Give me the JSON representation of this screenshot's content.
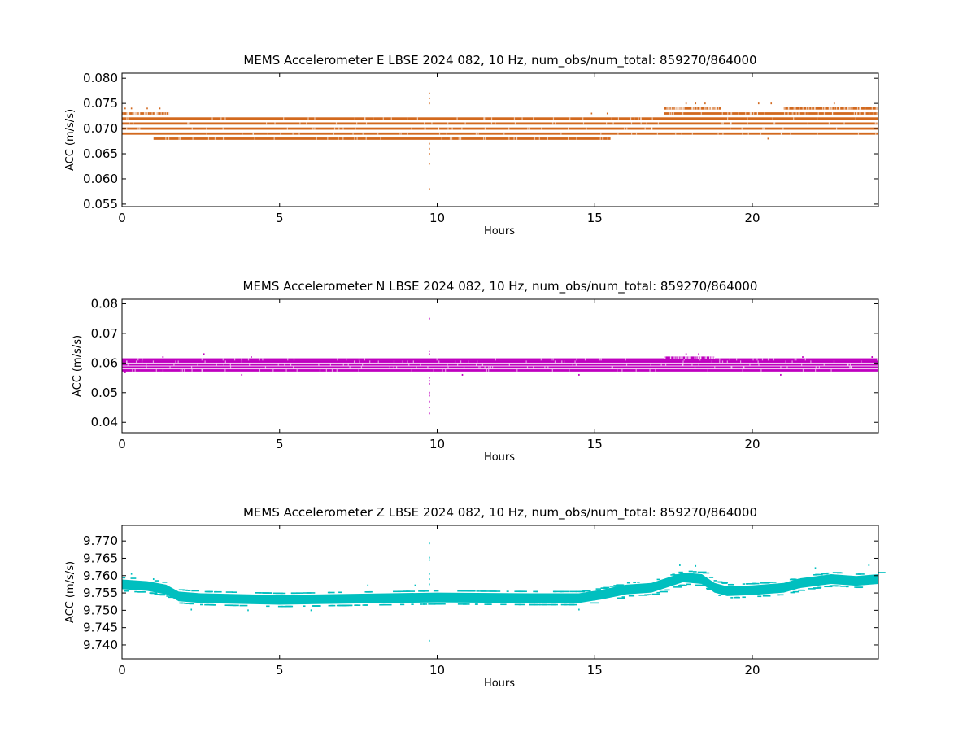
{
  "chart_data": [
    {
      "type": "scatter",
      "title": "MEMS Accelerometer E LBSE 2024 082, 10 Hz, num_obs/num_total: 859270/864000",
      "xlabel": "Hours",
      "ylabel": "ACC (m/s/s)",
      "xlim": [
        0,
        24
      ],
      "ylim": [
        0.0545,
        0.081
      ],
      "x_ticks": [
        "0",
        "5",
        "10",
        "15",
        "20"
      ],
      "x_tick_values": [
        0,
        5,
        10,
        15,
        20
      ],
      "y_ticks": [
        "0.055",
        "0.060",
        "0.065",
        "0.070",
        "0.075",
        "0.080"
      ],
      "y_tick_values": [
        0.055,
        0.06,
        0.065,
        0.07,
        0.075,
        0.08
      ],
      "color": "#d2691e",
      "grid": false,
      "series": [
        {
          "bands": [
            {
              "y": 0.069,
              "x": [
                0,
                24
              ]
            },
            {
              "y": 0.07,
              "x": [
                0,
                24
              ]
            },
            {
              "y": 0.071,
              "x": [
                0,
                24
              ]
            },
            {
              "y": 0.072,
              "x": [
                0,
                24
              ]
            },
            {
              "y": 0.073,
              "x": [
                0,
                1.5
              ]
            },
            {
              "y": 0.073,
              "x": [
                17.2,
                24
              ]
            },
            {
              "y": 0.074,
              "x": [
                17.2,
                19
              ]
            },
            {
              "y": 0.074,
              "x": [
                21,
                24
              ]
            },
            {
              "y": 0.068,
              "x": [
                1.0,
                15.5
              ]
            }
          ],
          "outliers": [
            {
              "x": 0.1,
              "y": 0.074
            },
            {
              "x": 0.3,
              "y": 0.074
            },
            {
              "x": 0.8,
              "y": 0.074
            },
            {
              "x": 1.2,
              "y": 0.074
            },
            {
              "x": 14.9,
              "y": 0.073
            },
            {
              "x": 15.4,
              "y": 0.073
            },
            {
              "x": 17.9,
              "y": 0.075
            },
            {
              "x": 18.2,
              "y": 0.075
            },
            {
              "x": 18.5,
              "y": 0.075
            },
            {
              "x": 20.2,
              "y": 0.075
            },
            {
              "x": 20.6,
              "y": 0.075
            },
            {
              "x": 22.6,
              "y": 0.075
            },
            {
              "x": 20.5,
              "y": 0.068
            },
            {
              "x": 9.75,
              "y": 0.077
            },
            {
              "x": 9.75,
              "y": 0.076
            },
            {
              "x": 9.75,
              "y": 0.075
            },
            {
              "x": 9.75,
              "y": 0.067
            },
            {
              "x": 9.75,
              "y": 0.066
            },
            {
              "x": 9.75,
              "y": 0.065
            },
            {
              "x": 9.75,
              "y": 0.063
            },
            {
              "x": 9.75,
              "y": 0.058
            }
          ]
        }
      ]
    },
    {
      "type": "scatter",
      "title": "MEMS Accelerometer N LBSE 2024 082, 10 Hz, num_obs/num_total: 859270/864000",
      "xlabel": "Hours",
      "ylabel": "ACC (m/s/s)",
      "xlim": [
        0,
        24
      ],
      "ylim": [
        0.0365,
        0.0815
      ],
      "x_ticks": [
        "0",
        "5",
        "10",
        "15",
        "20"
      ],
      "x_tick_values": [
        0,
        5,
        10,
        15,
        20
      ],
      "y_ticks": [
        "0.04",
        "0.05",
        "0.06",
        "0.07",
        "0.08"
      ],
      "y_tick_values": [
        0.04,
        0.05,
        0.06,
        0.07,
        0.08
      ],
      "color": "#bf00bf",
      "grid": false,
      "series": [
        {
          "bands": [
            {
              "y": 0.0575,
              "x": [
                0,
                24
              ]
            },
            {
              "y": 0.0585,
              "x": [
                0,
                24
              ]
            },
            {
              "y": 0.0595,
              "x": [
                0,
                24
              ]
            },
            {
              "y": 0.0605,
              "x": [
                0,
                24
              ]
            },
            {
              "y": 0.0612,
              "x": [
                0,
                24
              ]
            },
            {
              "y": 0.0618,
              "x": [
                17.2,
                18.8
              ]
            }
          ],
          "outliers": [
            {
              "x": 1.3,
              "y": 0.062
            },
            {
              "x": 2.6,
              "y": 0.063
            },
            {
              "x": 4.1,
              "y": 0.062
            },
            {
              "x": 17.9,
              "y": 0.063
            },
            {
              "x": 18.3,
              "y": 0.063
            },
            {
              "x": 21.6,
              "y": 0.062
            },
            {
              "x": 23.8,
              "y": 0.062
            },
            {
              "x": 0.1,
              "y": 0.057
            },
            {
              "x": 3.8,
              "y": 0.056
            },
            {
              "x": 10.8,
              "y": 0.056
            },
            {
              "x": 14.5,
              "y": 0.056
            },
            {
              "x": 20.9,
              "y": 0.056
            },
            {
              "x": 9.75,
              "y": 0.075
            },
            {
              "x": 9.75,
              "y": 0.064
            },
            {
              "x": 9.75,
              "y": 0.063
            },
            {
              "x": 9.75,
              "y": 0.055
            },
            {
              "x": 9.75,
              "y": 0.054
            },
            {
              "x": 9.75,
              "y": 0.053
            },
            {
              "x": 9.75,
              "y": 0.05
            },
            {
              "x": 9.75,
              "y": 0.049
            },
            {
              "x": 9.75,
              "y": 0.047
            },
            {
              "x": 9.75,
              "y": 0.045
            },
            {
              "x": 9.75,
              "y": 0.043
            }
          ]
        }
      ]
    },
    {
      "type": "scatter",
      "title": "MEMS Accelerometer Z LBSE 2024 082, 10 Hz, num_obs/num_total: 859270/864000",
      "xlabel": "Hours",
      "ylabel": "ACC (m/s/s)",
      "xlim": [
        0,
        24
      ],
      "ylim": [
        9.736,
        9.7745
      ],
      "x_ticks": [
        "0",
        "5",
        "10",
        "15",
        "20"
      ],
      "x_tick_values": [
        0,
        5,
        10,
        15,
        20
      ],
      "y_ticks": [
        "9.740",
        "9.745",
        "9.750",
        "9.755",
        "9.760",
        "9.765",
        "9.770"
      ],
      "y_tick_values": [
        9.74,
        9.745,
        9.75,
        9.755,
        9.76,
        9.765,
        9.77
      ],
      "color": "#00bfbf",
      "grid": false,
      "series": [
        {
          "trend": [
            [
              0,
              9.7575
            ],
            [
              0.8,
              9.757
            ],
            [
              1.4,
              9.756
            ],
            [
              1.8,
              9.754
            ],
            [
              2.5,
              9.7535
            ],
            [
              5,
              9.753
            ],
            [
              7,
              9.7533
            ],
            [
              10,
              9.7537
            ],
            [
              13,
              9.7535
            ],
            [
              14.5,
              9.7535
            ],
            [
              15.2,
              9.7545
            ],
            [
              16,
              9.756
            ],
            [
              16.8,
              9.7565
            ],
            [
              17.3,
              9.758
            ],
            [
              17.8,
              9.7595
            ],
            [
              18.4,
              9.759
            ],
            [
              18.8,
              9.7565
            ],
            [
              19.2,
              9.7555
            ],
            [
              20,
              9.7558
            ],
            [
              21,
              9.7565
            ],
            [
              21.5,
              9.7578
            ],
            [
              22.5,
              9.759
            ],
            [
              23.3,
              9.7585
            ],
            [
              24,
              9.759
            ]
          ],
          "spread": 0.0028,
          "outliers": [
            {
              "x": 0.3,
              "y": 9.7605
            },
            {
              "x": 1.0,
              "y": 9.759
            },
            {
              "x": 2.2,
              "y": 9.7502
            },
            {
              "x": 4.0,
              "y": 9.75
            },
            {
              "x": 6.0,
              "y": 9.75
            },
            {
              "x": 7.8,
              "y": 9.7572
            },
            {
              "x": 9.3,
              "y": 9.7572
            },
            {
              "x": 14.5,
              "y": 9.7502
            },
            {
              "x": 17.7,
              "y": 9.763
            },
            {
              "x": 18.2,
              "y": 9.7628
            },
            {
              "x": 22.0,
              "y": 9.7622
            },
            {
              "x": 23.7,
              "y": 9.763
            },
            {
              "x": 9.75,
              "y": 9.7693
            },
            {
              "x": 9.75,
              "y": 9.7652
            },
            {
              "x": 9.75,
              "y": 9.7645
            },
            {
              "x": 9.75,
              "y": 9.7605
            },
            {
              "x": 9.75,
              "y": 9.759
            },
            {
              "x": 9.75,
              "y": 9.7575
            },
            {
              "x": 9.75,
              "y": 9.7412
            }
          ]
        }
      ]
    }
  ]
}
